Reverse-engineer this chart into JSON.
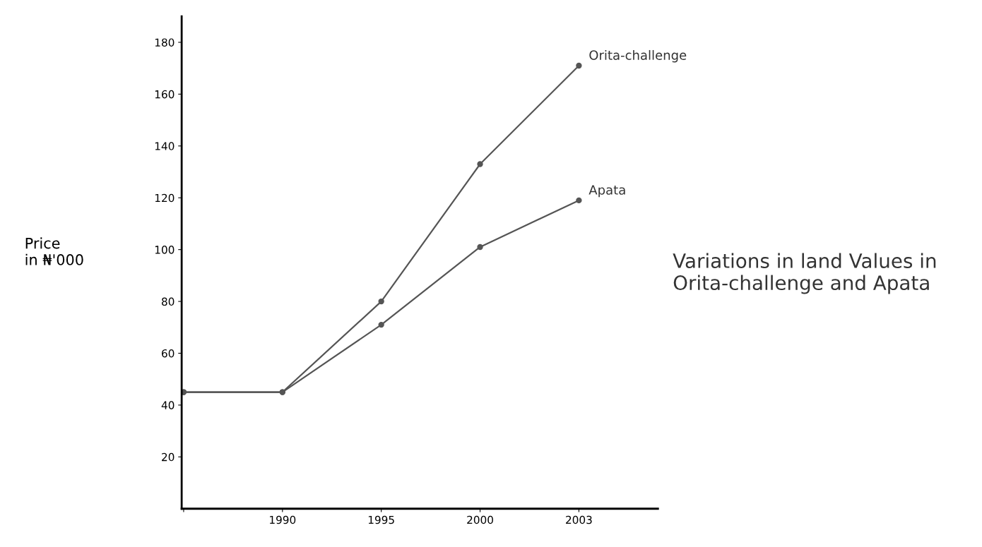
{
  "chart_data": {
    "type": "line",
    "title": "Variations in land Values in Orita-challenge and Apata",
    "ylabel": "Price\nin ₦'000",
    "categories": [
      null,
      "1990",
      "1995",
      "2000",
      "2003"
    ],
    "series": [
      {
        "name": "Orita-challenge",
        "color": "#555555",
        "values": [
          45,
          45,
          80,
          133,
          171
        ]
      },
      {
        "name": "Apata",
        "color": "#555555",
        "values": [
          45,
          45,
          71,
          101,
          119
        ]
      }
    ],
    "ylim": [
      0,
      190
    ],
    "yticks": [
      20,
      40,
      60,
      80,
      100,
      120,
      140,
      160,
      180
    ],
    "grid": false,
    "legend": false,
    "marker": "circle",
    "line_style": "solid"
  }
}
